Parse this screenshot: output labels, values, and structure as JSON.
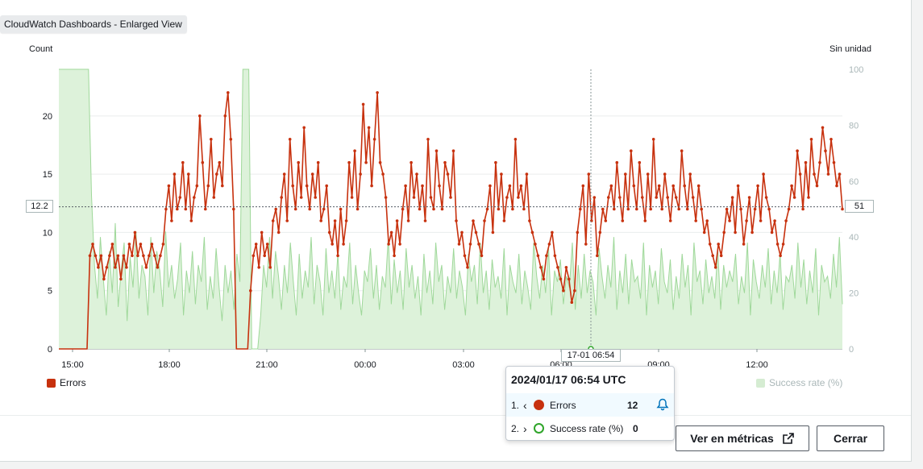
{
  "window": {
    "title": "CloudWatch Dashboards - Enlarged View"
  },
  "chart_data": {
    "type": "line",
    "left_axis": {
      "label": "Count",
      "ticks": [
        0,
        5,
        10,
        15,
        20
      ],
      "range": [
        0,
        24
      ]
    },
    "right_axis": {
      "label": "Sin unidad",
      "ticks": [
        0,
        20,
        40,
        60,
        80,
        100
      ],
      "range": [
        0,
        100
      ]
    },
    "x_ticks": [
      "15:00",
      "18:00",
      "21:00",
      "00:00",
      "03:00",
      "06:00",
      "09:00",
      "12:00"
    ],
    "grid": true,
    "series": [
      {
        "name": "Errors",
        "axis": "left",
        "color": "#c7310e",
        "values": [
          0,
          0,
          0,
          0,
          0,
          0,
          0,
          0,
          0,
          0,
          0,
          8,
          9,
          8,
          7,
          8,
          6,
          7,
          8,
          9,
          7,
          8,
          6,
          8,
          7,
          9,
          8,
          10,
          8,
          9,
          8,
          7,
          8,
          9,
          8,
          7,
          8,
          9,
          12,
          14,
          11,
          15,
          12,
          13,
          16,
          12,
          15,
          11,
          13,
          14,
          20,
          16,
          12,
          14,
          18,
          13,
          15,
          16,
          14,
          20,
          22,
          18,
          12,
          0,
          0,
          0,
          0,
          0,
          5,
          8,
          9,
          7,
          10,
          8,
          9,
          7,
          11,
          12,
          10,
          13,
          15,
          11,
          18,
          14,
          12,
          16,
          13,
          19,
          14,
          12,
          15,
          13,
          16,
          11,
          12,
          14,
          10,
          9,
          11,
          8,
          12,
          9,
          11,
          16,
          13,
          17,
          12,
          15,
          21,
          16,
          19,
          14,
          18,
          22,
          16,
          15,
          13,
          9,
          10,
          8,
          11,
          9,
          12,
          14,
          11,
          16,
          13,
          15,
          12,
          14,
          11,
          18,
          13,
          12,
          17,
          14,
          12,
          16,
          15,
          13,
          17,
          11,
          9,
          10,
          8,
          7,
          9,
          11,
          10,
          9,
          8,
          11,
          12,
          14,
          10,
          16,
          12,
          15,
          11,
          13,
          14,
          12,
          18,
          13,
          14,
          12,
          15,
          11,
          10,
          9,
          8,
          7,
          6,
          8,
          9,
          10,
          8,
          7,
          6,
          5,
          7,
          6,
          4,
          5,
          10,
          12,
          14,
          9,
          15,
          11,
          13,
          8,
          10,
          12,
          11,
          13,
          14,
          12,
          16,
          13,
          11,
          15,
          12,
          17,
          14,
          12,
          16,
          13,
          11,
          15,
          12,
          18,
          13,
          14,
          12,
          15,
          13,
          11,
          14,
          13,
          12,
          17,
          14,
          12,
          15,
          13,
          11,
          14,
          12,
          10,
          11,
          9,
          8,
          7,
          9,
          8,
          10,
          12,
          11,
          13,
          10,
          14,
          12,
          9,
          11,
          13,
          10,
          12,
          14,
          11,
          15,
          13,
          12,
          10,
          11,
          9,
          8,
          9,
          11,
          12,
          14,
          13,
          17,
          15,
          12,
          16,
          13,
          18,
          15,
          14,
          16,
          19,
          17,
          15,
          18,
          16,
          14,
          15,
          12
        ],
        "highlight": {
          "x": "17-01 06:54",
          "value": 12
        }
      },
      {
        "name": "Success rate (%)",
        "axis": "right",
        "color": "#9fd89a",
        "values": [
          100,
          100,
          100,
          100,
          100,
          100,
          100,
          100,
          100,
          100,
          100,
          55,
          30,
          18,
          40,
          25,
          12,
          35,
          20,
          45,
          15,
          28,
          38,
          10,
          33,
          22,
          42,
          18,
          30,
          26,
          12,
          40,
          20,
          35,
          28,
          15,
          42,
          22,
          30,
          18,
          25,
          38,
          12,
          28,
          20,
          35,
          16,
          30,
          24,
          40,
          14,
          26,
          18,
          36,
          22,
          10,
          30,
          20,
          28,
          14,
          34,
          24,
          100,
          100,
          100,
          0,
          0,
          0,
          12,
          30,
          22,
          40,
          18,
          35,
          26,
          14,
          30,
          20,
          38,
          24,
          12,
          34,
          18,
          28,
          22,
          40,
          16,
          30,
          24,
          12,
          36,
          20,
          28,
          18,
          34,
          14,
          26,
          22,
          38,
          16,
          30,
          20,
          12,
          28,
          24,
          36,
          18,
          30,
          14,
          26,
          22,
          40,
          16,
          32,
          20,
          28,
          14,
          36,
          22,
          30,
          18,
          26,
          12,
          34,
          20,
          28,
          16,
          38,
          24,
          30,
          14,
          26,
          20,
          36,
          18,
          28,
          22,
          12,
          34,
          24,
          30,
          16,
          38,
          20,
          28,
          14,
          32,
          22,
          26,
          18,
          36,
          12,
          30,
          24,
          20,
          34,
          16,
          28,
          22,
          14,
          38,
          26,
          18,
          30,
          20,
          36,
          12,
          28,
          24,
          32,
          16,
          26,
          22,
          38,
          14,
          30,
          18,
          34,
          20,
          28,
          24,
          12,
          36,
          26,
          18,
          30,
          22,
          40,
          14,
          28,
          20,
          34,
          16,
          32,
          24,
          26,
          18,
          38,
          12,
          30,
          22,
          28,
          16,
          36,
          24,
          20,
          32,
          14,
          26,
          18,
          34,
          22,
          30,
          12,
          38,
          24,
          28,
          16,
          32,
          20,
          26,
          18,
          36,
          14,
          30,
          22,
          28,
          24,
          34,
          16,
          26,
          20,
          38,
          12,
          32,
          24,
          18,
          30,
          22,
          36,
          16,
          28,
          20,
          34,
          14,
          26,
          24,
          30,
          18,
          38,
          22,
          32,
          16,
          28,
          20,
          36,
          12,
          30,
          24,
          26,
          18,
          34,
          22,
          40,
          16
        ]
      }
    ]
  },
  "crosshair": {
    "left_value": "12.2",
    "right_value": "51",
    "x_label": "17-01 06:54"
  },
  "legend": {
    "errors": "Errors",
    "success": "Success rate (%)"
  },
  "tooltip": {
    "title": "2024/01/17 06:54 UTC",
    "rows": [
      {
        "index": "1.",
        "chevron": "‹",
        "name": "Errors",
        "value": "12"
      },
      {
        "index": "2.",
        "chevron": "›",
        "name": "Success rate (%)",
        "value": "0"
      }
    ]
  },
  "footer": {
    "view_metrics": "Ver en métricas",
    "close": "Cerrar"
  }
}
